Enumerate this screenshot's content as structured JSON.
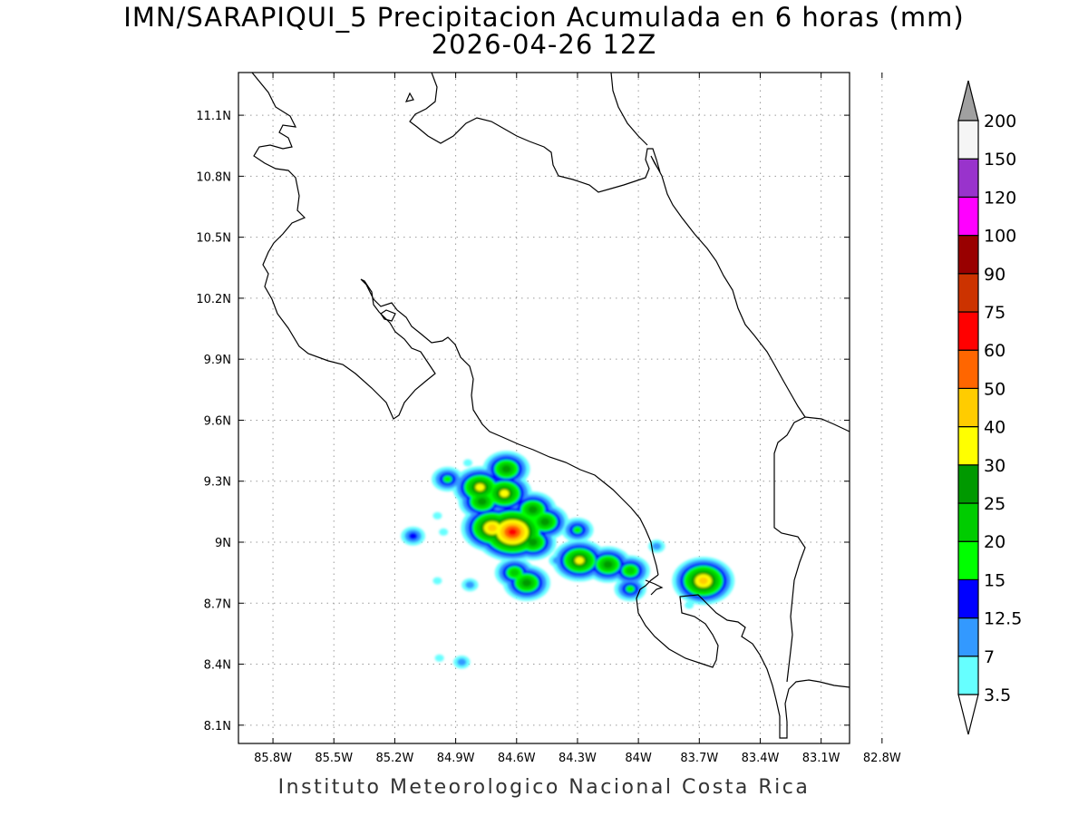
{
  "title": {
    "line1": "IMN/SARAPIQUI_5 Precipitacion Acumulada en 6 horas (mm)",
    "line2": "2026-04-26 12Z"
  },
  "footer": "Instituto Meteorologico Nacional Costa Rica",
  "map": {
    "lon_range": [
      -85.97,
      -82.96
    ],
    "lat_range": [
      8.01,
      11.31
    ],
    "lon_ticks": [
      {
        "value": -85.8,
        "label": "85.8W"
      },
      {
        "value": -85.5,
        "label": "85.5W"
      },
      {
        "value": -85.2,
        "label": "85.2W"
      },
      {
        "value": -84.9,
        "label": "84.9W"
      },
      {
        "value": -84.6,
        "label": "84.6W"
      },
      {
        "value": -84.3,
        "label": "84.3W"
      },
      {
        "value": -84.0,
        "label": "84W"
      },
      {
        "value": -83.7,
        "label": "83.7W"
      },
      {
        "value": -83.4,
        "label": "83.4W"
      },
      {
        "value": -83.1,
        "label": "83.1W"
      },
      {
        "value": -82.8,
        "label": "82.8W"
      }
    ],
    "lat_ticks": [
      {
        "value": 11.1,
        "label": "11.1N"
      },
      {
        "value": 10.8,
        "label": "10.8N"
      },
      {
        "value": 10.5,
        "label": "10.5N"
      },
      {
        "value": 10.2,
        "label": "10.2N"
      },
      {
        "value": 9.9,
        "label": "9.9N"
      },
      {
        "value": 9.6,
        "label": "9.6N"
      },
      {
        "value": 9.3,
        "label": "9.3N"
      },
      {
        "value": 9.0,
        "label": "9N"
      },
      {
        "value": 8.7,
        "label": "8.7N"
      },
      {
        "value": 8.4,
        "label": "8.4N"
      },
      {
        "value": 8.1,
        "label": "8.1N"
      }
    ],
    "grid": "dotted",
    "coastline_color": "#000000"
  },
  "colorbar": {
    "levels": [
      "3.5",
      "7",
      "12.5",
      "15",
      "20",
      "25",
      "30",
      "40",
      "50",
      "60",
      "75",
      "90",
      "100",
      "120",
      "150",
      "200"
    ],
    "colors": [
      "#66ffff",
      "#3399ff",
      "#0000ff",
      "#00ff00",
      "#00cc00",
      "#009900",
      "#ffff00",
      "#ffcc00",
      "#ff6600",
      "#ff0000",
      "#cc3300",
      "#990000",
      "#ff00ff",
      "#9933cc",
      "#f5f5f5"
    ],
    "under_color": "#ffffff",
    "over_color": "#a0a0a0"
  },
  "precip_cells": [
    {
      "lon": -84.62,
      "lat": 9.05,
      "value": 60
    },
    {
      "lon": -84.72,
      "lat": 9.07,
      "value": 40
    },
    {
      "lon": -84.78,
      "lat": 9.27,
      "value": 30
    },
    {
      "lon": -84.66,
      "lat": 9.24,
      "value": 30
    },
    {
      "lon": -84.77,
      "lat": 9.2,
      "value": 25
    },
    {
      "lon": -84.65,
      "lat": 9.36,
      "value": 25
    },
    {
      "lon": -84.52,
      "lat": 9.16,
      "value": 25
    },
    {
      "lon": -84.46,
      "lat": 9.1,
      "value": 25
    },
    {
      "lon": -84.52,
      "lat": 9.0,
      "value": 25
    },
    {
      "lon": -84.29,
      "lat": 8.91,
      "value": 30
    },
    {
      "lon": -84.15,
      "lat": 8.89,
      "value": 25
    },
    {
      "lon": -84.04,
      "lat": 8.86,
      "value": 20
    },
    {
      "lon": -84.61,
      "lat": 8.85,
      "value": 20
    },
    {
      "lon": -84.55,
      "lat": 8.8,
      "value": 25
    },
    {
      "lon": -84.04,
      "lat": 8.77,
      "value": 15
    },
    {
      "lon": -84.3,
      "lat": 9.06,
      "value": 15
    },
    {
      "lon": -83.68,
      "lat": 8.81,
      "value": 40
    },
    {
      "lon": -84.94,
      "lat": 9.31,
      "value": 15
    },
    {
      "lon": -85.11,
      "lat": 9.03,
      "value": 12.5
    },
    {
      "lon": -83.91,
      "lat": 8.98,
      "value": 7
    },
    {
      "lon": -84.4,
      "lat": 8.91,
      "value": 7
    },
    {
      "lon": -84.83,
      "lat": 8.79,
      "value": 7
    },
    {
      "lon": -83.75,
      "lat": 8.69,
      "value": 3.5
    },
    {
      "lon": -84.87,
      "lat": 8.41,
      "value": 7
    },
    {
      "lon": -84.98,
      "lat": 8.43,
      "value": 3.5
    },
    {
      "lon": -84.99,
      "lat": 9.13,
      "value": 3.5
    },
    {
      "lon": -84.96,
      "lat": 9.05,
      "value": 3.5
    },
    {
      "lon": -84.99,
      "lat": 8.81,
      "value": 3.5
    },
    {
      "lon": -84.84,
      "lat": 9.39,
      "value": 3.5
    }
  ]
}
